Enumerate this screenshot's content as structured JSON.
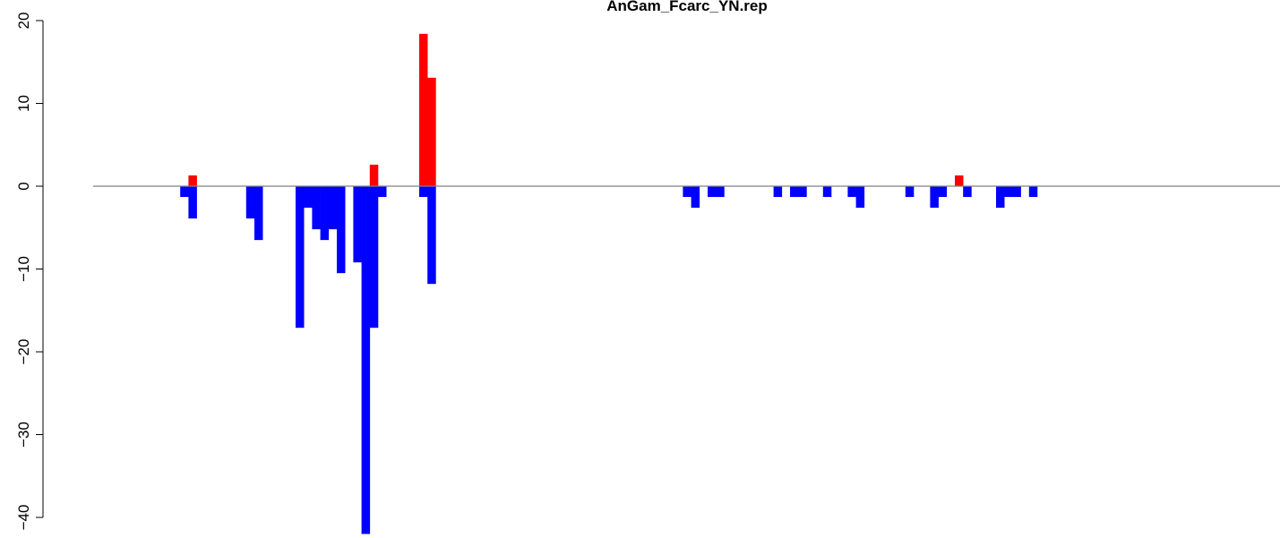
{
  "chart_data": {
    "type": "bar",
    "title": "AnGam_Fcarc_YN.rep",
    "xlabel": "",
    "ylabel": "",
    "ylim": [
      -42.5,
      20
    ],
    "y_ticks": [
      -40,
      -30,
      -20,
      -10,
      0,
      10,
      20
    ],
    "y_tick_labels": [
      "−40",
      "−30",
      "−20",
      "−10",
      "0",
      "10",
      "20"
    ],
    "x_range": [
      0,
      144
    ],
    "baseline": 0,
    "colors": {
      "positive": "#ff0000",
      "negative": "#0000ff",
      "baseline": "#808080",
      "axis": "#000000"
    },
    "series": [
      {
        "color": "#ff0000",
        "points": [
          [
            12,
            1.3
          ],
          [
            34,
            2.6
          ],
          [
            40,
            18.4
          ],
          [
            41,
            13.1
          ],
          [
            105,
            1.3
          ]
        ]
      },
      {
        "color": "#0000ff",
        "points": [
          [
            11,
            -1.3
          ],
          [
            12,
            -3.9
          ],
          [
            19,
            -3.9
          ],
          [
            20,
            -6.5
          ],
          [
            25,
            -17.1
          ],
          [
            26,
            -2.6
          ],
          [
            27,
            -5.2
          ],
          [
            28,
            -6.5
          ],
          [
            29,
            -5.2
          ],
          [
            30,
            -10.5
          ],
          [
            32,
            -9.2
          ],
          [
            33,
            -42.0
          ],
          [
            34,
            -17.1
          ],
          [
            35,
            -1.3
          ],
          [
            40,
            -1.3
          ],
          [
            41,
            -11.8
          ],
          [
            72,
            -1.3
          ],
          [
            73,
            -2.6
          ],
          [
            75,
            -1.3
          ],
          [
            76,
            -1.3
          ],
          [
            83,
            -1.3
          ],
          [
            85,
            -1.3
          ],
          [
            86,
            -1.3
          ],
          [
            89,
            -1.3
          ],
          [
            92,
            -1.3
          ],
          [
            93,
            -2.6
          ],
          [
            99,
            -1.3
          ],
          [
            102,
            -2.6
          ],
          [
            103,
            -1.3
          ],
          [
            106,
            -1.3
          ],
          [
            110,
            -2.6
          ],
          [
            111,
            -1.3
          ],
          [
            112,
            -1.3
          ],
          [
            114,
            -1.3
          ]
        ]
      }
    ]
  }
}
